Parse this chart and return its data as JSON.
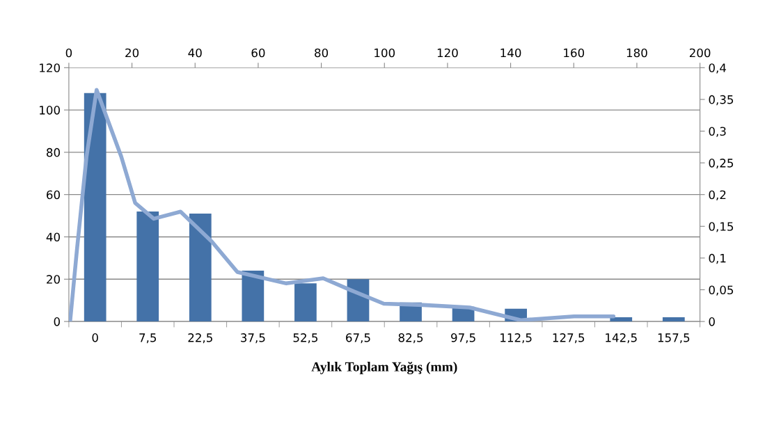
{
  "chart_data": [
    {
      "type": "bar",
      "xlabel": "Aylık Toplam Yağış (mm)",
      "categories": [
        "0",
        "7,5",
        "22,5",
        "37,5",
        "52,5",
        "67,5",
        "82,5",
        "97,5",
        "112,5",
        "127,5",
        "142,5",
        "157,5"
      ],
      "ylim": [
        0,
        120
      ],
      "yticks": [
        0,
        20,
        40,
        60,
        80,
        100,
        120
      ],
      "grid": "y",
      "series": [
        {
          "color": "#4472a8",
          "values": [
            108,
            52,
            51,
            24,
            18,
            20,
            9,
            7,
            6,
            0,
            2,
            2
          ]
        }
      ]
    },
    {
      "type": "line",
      "xlim": [
        0,
        200
      ],
      "xticks": [
        0,
        20,
        40,
        60,
        80,
        100,
        120,
        140,
        160,
        180,
        200
      ],
      "ylim": [
        0,
        0.4
      ],
      "yticks": [
        {
          "value": 0,
          "label": "0"
        },
        {
          "value": 0.05,
          "label": "0,05"
        },
        {
          "value": 0.1,
          "label": "0,1"
        },
        {
          "value": 0.15,
          "label": "0,15"
        },
        {
          "value": 0.2,
          "label": "0,2"
        },
        {
          "value": 0.25,
          "label": "0,25"
        },
        {
          "value": 0.3,
          "label": "0,3"
        },
        {
          "value": 0.35,
          "label": "0,35"
        },
        {
          "value": 0.4,
          "label": "0,4"
        }
      ],
      "series": [
        {
          "color": "#8ea9d3",
          "line_style": "solid",
          "marker": "none",
          "x": [
            0.4,
            2.6,
            5.6,
            8.8,
            16.6,
            21,
            26.9,
            35.4,
            45.3,
            53.4,
            68.9,
            80.6,
            89.5,
            99.8,
            112.3,
            127,
            143.2,
            160.1,
            172.6
          ],
          "values": [
            0,
            0.115,
            0.26,
            0.365,
            0.26,
            0.187,
            0.162,
            0.173,
            0.126,
            0.078,
            0.06,
            0.068,
            0.049,
            0.028,
            0.026,
            0.022,
            0.002,
            0.008,
            0.008
          ]
        }
      ]
    }
  ]
}
